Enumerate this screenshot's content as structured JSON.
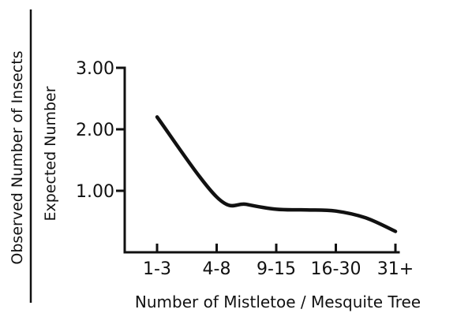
{
  "chart_data": {
    "type": "line",
    "title": "",
    "xlabel": "Number of Mistletoe / Mesquite Tree",
    "ylabel_numerator": "Observed Number of Insects",
    "ylabel_denominator": "Expected Number",
    "categories": [
      "1-3",
      "4-8",
      "9-15",
      "16-30",
      "31+"
    ],
    "y_ticks": [
      "3.00",
      "2.00",
      "1.00"
    ],
    "ylim": [
      0,
      3
    ],
    "grid": false,
    "legend": "none",
    "series": [
      {
        "color": "#111111",
        "points": [
          {
            "x": 0.0,
            "y": 2.2
          },
          {
            "x": 1.0,
            "y": 0.9
          },
          {
            "x": 1.5,
            "y": 0.78
          },
          {
            "x": 2.0,
            "y": 0.7
          },
          {
            "x": 2.5,
            "y": 0.69
          },
          {
            "x": 3.0,
            "y": 0.67
          },
          {
            "x": 3.5,
            "y": 0.56
          },
          {
            "x": 4.0,
            "y": 0.34
          }
        ]
      }
    ]
  }
}
